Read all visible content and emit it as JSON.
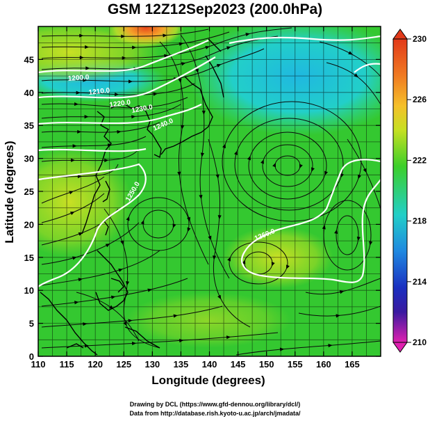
{
  "title": "GSM 12Z12Sep2023 (200.0hPa)",
  "xlabel": "Longitude (degrees)",
  "ylabel": "Latitude (degrees)",
  "credit_line1": "Drawing by DCL (https://www.gfd-dennou.org/library/dcl/)",
  "credit_line2": "Data from http://database.rish.kyoto-u.ac.jp/arch/jmadata/",
  "contour_labels": [
    "1200.0",
    "1210.0",
    "1220.0",
    "1230.0",
    "1240.0",
    "1250.0",
    "1260.0"
  ],
  "chart_data": {
    "type": "heatmap",
    "quantity": "temperature field with streamlines and geopotential contours",
    "xlim": [
      110,
      170
    ],
    "ylim": [
      0,
      50
    ],
    "xticks": [
      "110",
      "115",
      "120",
      "125",
      "130",
      "135",
      "140",
      "145",
      "150",
      "155",
      "160",
      "165"
    ],
    "yticks": [
      "0",
      "5",
      "10",
      "15",
      "20",
      "25",
      "30",
      "35",
      "40",
      "45"
    ],
    "colorbar": {
      "min": 210,
      "max": 230,
      "ticks": [
        "230",
        "226",
        "222",
        "218",
        "214",
        "210"
      ]
    },
    "grid": true,
    "colors": {
      "warm_max": "#e23a1a",
      "orange": "#f5a22a",
      "yellow_green": "#b8e020",
      "green": "#33cc2a",
      "cyan": "#24cfc8",
      "blue": "#1a5fd8",
      "navy": "#1a1aa0",
      "magenta_min": "#e020b0"
    }
  }
}
